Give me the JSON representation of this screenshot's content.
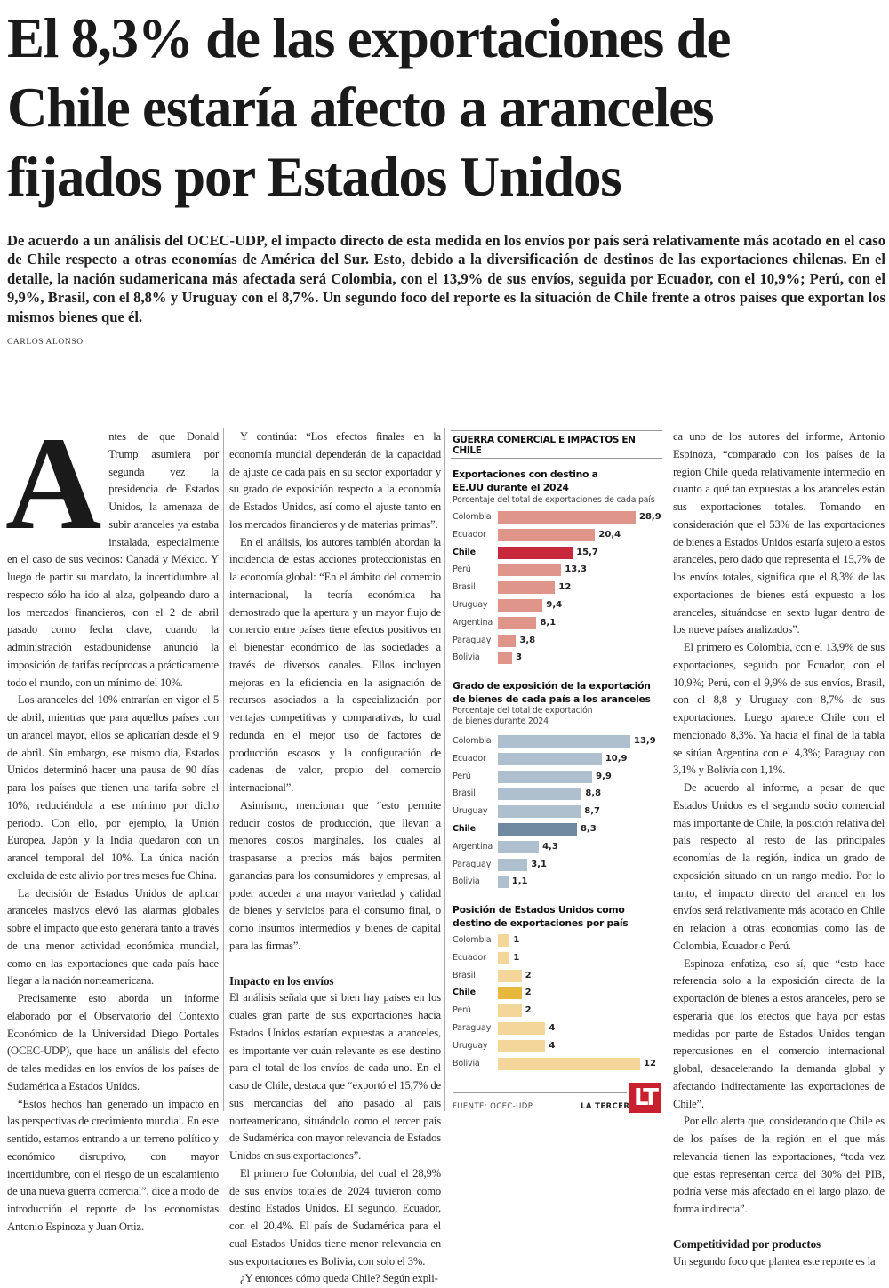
{
  "headline": {
    "lines": [
      "El 8,3% de las exportaciones de",
      "Chile estaría afecto a aranceles",
      "fijados por Estados Unidos"
    ]
  },
  "lede": "De acuerdo a un análisis del OCEC-UDP, el impacto directo de esta medida en los envíos por país será relativamente más acotado en el caso de Chile respecto a otras economías de América del Sur. Esto, debido a la diversificación de destinos de las exportaciones chilenas. En el detalle, la nación sudamericana más afectada será Colombia, con el 13,9% de sus envíos, seguida por Ecuador, con el 10,9%; Perú, con el 9,9%, Brasil, con el 8,8% y Uruguay con el 8,7%. Un segundo foco del reporte es la situación de Chile frente a otros países que exportan los mismos bienes que él.",
  "byline": "CARLOS ALONSO",
  "body": {
    "dropcap": "A",
    "col1": [
      "ntes de que Donald Trump asumiera por segunda vez la presidencia de Estados Unidos, la amenaza de subir aranceles ya estaba instalada, especialmente en el caso de sus vecinos: Canadá y México. Y luego de partir su mandato, la incertidumbre al respecto sólo ha ido al alza, golpeando duro a los mercados financieros, con el 2 de abril pasado como fecha clave, cuando la administración estadounidense anunció la imposición de tarifas recíprocas a prácticamente todo el mundo, con un mínimo del 10%.",
      "Los aranceles del 10% entrarían en vigor el 5 de abril, mientras que para aquellos países con un arancel mayor, ellos se aplicarían desde el 9 de abril. Sin embargo, ese mismo día, Estados Unidos determinó hacer una pausa de 90 días para los países que tienen una tarifa sobre el 10%, reduciéndola a ese mínimo por dicho periodo. Con ello, por ejemplo, la Unión Europea, Japón y la India quedaron con un arancel temporal del 10%. La única nación excluida de este alivio por tres meses fue China.",
      "La decisión de Estados Unidos de aplicar aranceles masivos elevó las alarmas globales sobre el impacto que esto generará tanto a través de una menor actividad económica mundial, como en las exportaciones que cada país hace llegar a la nación norteamericana.",
      "Precisamente esto aborda un informe elaborado por el Observatorio del Contexto Económico de la Universidad Diego Portales (OCEC-UDP), que hace un análisis del efecto de tales medidas en los envíos de los países de Sudamérica a Estados Unidos.",
      "“Estos hechos han generado un impacto en las perspectivas de crecimiento mundial. En este sentido, estamos entrando a un terreno político y económico disruptivo, con mayor incertidumbre, con el riesgo de un escalamiento de una nueva guerra comercial”, dice a modo de introducción el reporte de los economistas Antonio Espinoza y Juan Ortiz."
    ],
    "col2": [
      "Y continúa: “Los efectos finales en la economía mundial dependerán de la capacidad de ajuste de cada país en su sector exportador y su grado de exposición respecto a la economía de Estados Unidos, así como el ajuste tanto en los mercados financieros y de materias primas”.",
      "En el análisis, los autores también abordan la incidencia de estas acciones proteccionistas en la economía global: “En el ámbito del comercio internacional, la teoría económica ha demostrado que la apertura y un mayor flujo de comercio entre países tiene efectos positivos en el bienestar económico de las sociedades a través de diversos canales. Ellos incluyen mejoras en la eficiencia en la asignación de recursos asociados a la especialización por ventajas competitivas y comparativas, lo cual redunda en el mejor uso de factores de producción escasos y la configuración de cadenas de valor, propio del comercio internacional”.",
      "Asimismo, mencionan que “esto permite reducir costos de producción, que llevan a menores costos marginales, los cuales al traspasarse a precios más bajos permiten ganancias para los consumidores y empresas, al poder acceder a una mayor variedad y calidad de bienes y servicios para el consumo final, o como insumos intermedios y bienes de capital para las firmas”."
    ],
    "col2_heading": "Impacto en los envíos",
    "col2b": [
      "El análisis señala que si bien hay países en los cuales gran parte de sus exportaciones hacia Estados Unidos estarían expuestas a aranceles, es importante ver cuán relevante es ese destino para el total de los envíos de cada uno. En el caso de Chile, destaca que “exportó el 15,7% de sus mercancías del año pasado al país norteamericano, situándolo como el tercer país de Sudamérica con mayor relevancia de Estados Unidos en sus exportaciones”.",
      "El primero fue Colombia, del cual el 28,9% de sus envíos totales de 2024 tuvieron como destino Estados Unidos. El segundo, Ecuador, con el 20,4%. El país de Sudamérica para el cual Estados Unidos tiene menor relevancia en sus exportaciones es Bolivia, con solo el 3%.",
      "¿Y entonces cómo queda Chile? Según expli-"
    ],
    "col4": [
      "ca uno de los autores del informe, Antonio Espinoza, “comparado con los países de la región Chile queda relativamente intermedio en cuanto a qué tan expuestas a los aranceles están sus exportaciones totales. Tomando en consideración que el 53% de las exportaciones de bienes a Estados Unidos estaría sujeto a estos aranceles, pero dado que representa el 15,7% de los envíos totales, significa que el 8,3% de las exportaciones de bienes está expuesto a los aranceles, situándose en sexto lugar dentro de los nueve países analizados”.",
      "El primero es Colombia, con el 13,9% de sus exportaciones, seguido por Ecuador, con el 10,9%; Perú, con el 9,9% de sus envíos, Brasil, con el 8,8 y Uruguay con 8,7% de sus exportaciones. Luego aparece Chile con el mencionado 8,3%. Ya hacia el final de la tabla se sitúan Argentina con el 4,3%; Paraguay con 3,1% y Bolivía con 1,1%.",
      "De acuerdo al informe, a pesar de que Estados Unidos es el segundo socio comercial más importante de Chile, la posición relativa del país respecto al resto de las principales economías de la región, indica un grado de exposición situado en un rango medio. Por lo tanto, el impacto directo del arancel en los envíos será relativamente más acotado en Chile en relación a otras economías como las de Colombia, Ecuador o Perú.",
      "Espinoza enfatiza, eso sí, que “esto hace referencia solo a la exposición directa de la exportación de bienes a estos aranceles, pero se esperaría que los efectos que haya por estas medidas por parte de Estados Unidos tengan repercusiones en el comercio internacional global, desacelerando la demanda global y afectando indirectamente las exportaciones de Chile”.",
      "Por ello alerta que, considerando que Chile es de los países de la región en el que más relevancia tienen las exportaciones, “toda vez que estas representan cerca del 30% del PIB, podría verse más afectado en el largo plazo, de forma indirecta”."
    ],
    "col4_heading": "Competitividad por productos",
    "col4b": [
      "Un segundo foco que plantea este reporte es la"
    ]
  },
  "panel": {
    "section_title": "GUERRA COMERCIAL E IMPACTOS EN CHILE",
    "source": "FUENTE: OCEC-UDP",
    "brand": "LA TERCERA",
    "logo": "LT"
  },
  "chart_data": [
    {
      "type": "bar",
      "orientation": "horizontal",
      "title": "Exportaciones con destino a EE.UU durante el 2024",
      "subtitle": "Porcentaje del total de exportaciones de cada país",
      "categories": [
        "Colombia",
        "Ecuador",
        "Chile",
        "Perú",
        "Brasil",
        "Uruguay",
        "Argentina",
        "Paraguay",
        "Bolivia"
      ],
      "values": [
        28.9,
        20.4,
        15.7,
        13.3,
        12,
        9.4,
        8.1,
        3.8,
        3
      ],
      "highlight": "Chile",
      "color": "#e0958a",
      "highlight_color": "#c8283c",
      "xlim": [
        0,
        29
      ]
    },
    {
      "type": "bar",
      "orientation": "horizontal",
      "title": "Grado de exposición de la exportación de bienes de cada país a los aranceles",
      "subtitle": "Porcentaje del total de exportación de bienes durante 2024",
      "categories": [
        "Colombia",
        "Ecuador",
        "Perú",
        "Brasil",
        "Uruguay",
        "Chile",
        "Argentina",
        "Paraguay",
        "Bolivia"
      ],
      "values": [
        13.9,
        10.9,
        9.9,
        8.8,
        8.7,
        8.3,
        4.3,
        3.1,
        1.1
      ],
      "highlight": "Chile",
      "color": "#aebfce",
      "highlight_color": "#6f8aa0",
      "xlim": [
        0,
        14
      ]
    },
    {
      "type": "bar",
      "orientation": "horizontal",
      "title": "Posición de Estados Unidos como destino de exportaciones por país",
      "subtitle": "",
      "categories": [
        "Colombia",
        "Ecuador",
        "Brasil",
        "Chile",
        "Perú",
        "Paraguay",
        "Uruguay",
        "Bolivia"
      ],
      "values": [
        1,
        1,
        2,
        2,
        2,
        4,
        4,
        12
      ],
      "highlight": "Chile",
      "color": "#f4d69a",
      "highlight_color": "#e8b73e",
      "xlim": [
        0,
        12
      ]
    }
  ]
}
